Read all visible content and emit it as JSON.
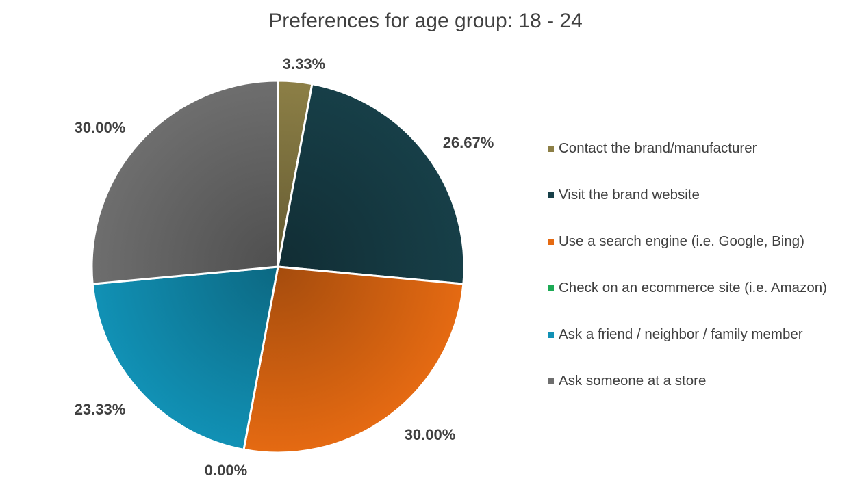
{
  "chart_data": {
    "type": "pie",
    "title": "Preferences for age group: 18 - 24",
    "categories": [
      "Contact the brand/manufacturer",
      "Visit the brand website",
      "Use a search engine (i.e. Google, Bing)",
      "Check on an ecommerce site (i.e. Amazon)",
      "Ask a friend / neighbor / family member",
      "Ask someone at a store"
    ],
    "values": [
      3.33,
      26.67,
      30.0,
      0.0,
      23.33,
      30.0
    ],
    "data_labels": [
      "3.33%",
      "26.67%",
      "30.00%",
      "0.00%",
      "23.33%",
      "30.00%"
    ],
    "colors": [
      "#8C7F46",
      "#173F48",
      "#E56A12",
      "#1DAA55",
      "#1191B5",
      "#6E6E6E"
    ],
    "legend_position": "right"
  }
}
